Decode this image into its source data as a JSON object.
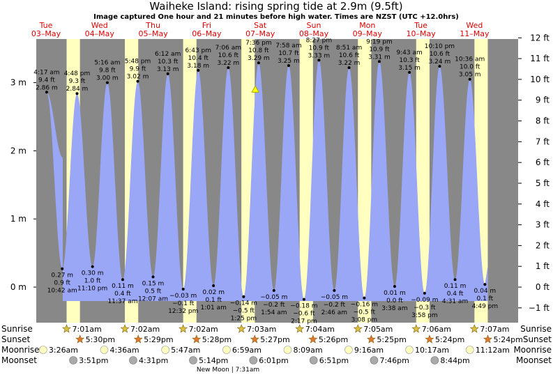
{
  "header": {
    "title": "Waiheke Island: rising  spring tide at 2.9m (9.5ft)",
    "subtitle": "Image captured One hour and 21 minutes before high water. Times are NZST (UTC +12.0hrs)"
  },
  "colors": {
    "night": "#888888",
    "day": "#ffffc0",
    "water": "#9aa6f6",
    "date_text": "#dd0000",
    "sun_star": "#d8c040",
    "sunset_star": "#e07830",
    "moonrise": "#ffffc0",
    "moonset": "#aaaaaa"
  },
  "days": [
    {
      "dow": "Tue",
      "date": "03–May"
    },
    {
      "dow": "Wed",
      "date": "04–May"
    },
    {
      "dow": "Thu",
      "date": "05–May"
    },
    {
      "dow": "Fri",
      "date": "06–May"
    },
    {
      "dow": "Sat",
      "date": "07–May"
    },
    {
      "dow": "Sun",
      "date": "08–May"
    },
    {
      "dow": "Mon",
      "date": "09–May"
    },
    {
      "dow": "Tue",
      "date": "10–May"
    },
    {
      "dow": "Wed",
      "date": "11–May"
    }
  ],
  "chart_data": {
    "type": "area",
    "x_start": "2022-05-03 12:00",
    "x_end": "2022-05-11 18:30",
    "ylim_m": [
      -0.42,
      3.85
    ],
    "ylim_ft": [
      -1.38,
      12.63
    ],
    "left_axis": {
      "ticks": [
        0,
        1,
        2,
        3
      ],
      "labels": [
        "0 m",
        "1 m",
        "2 m",
        "3 m"
      ]
    },
    "right_axis": {
      "ticks": [
        -1,
        0,
        1,
        2,
        3,
        4,
        5,
        6,
        7,
        8,
        9,
        10,
        11,
        12
      ],
      "labels": [
        "−1 ft",
        "0 ft",
        "1 ft",
        "2 ft",
        "3 ft",
        "4 ft",
        "5 ft",
        "6 ft",
        "7 ft",
        "8 ft",
        "9 ft",
        "10 ft",
        "11 ft",
        "12 ft"
      ]
    },
    "tides": [
      {
        "datetime": "2022-05-03 16:17",
        "type": "high",
        "label": [
          "4:17 am",
          "9.4 ft",
          "2.86 m"
        ],
        "m": 2.86
      },
      {
        "datetime": "2022-05-03 22:42",
        "type": "low",
        "label": [
          "0.27 m",
          "0.9 ft",
          "10:42 am"
        ],
        "m": 0.27
      },
      {
        "datetime": "2022-05-04 04:48",
        "type": "high",
        "label": [
          "4:48 pm",
          "9.3 ft",
          "2.84 m"
        ],
        "m": 2.84
      },
      {
        "datetime": "2022-05-04 11:10",
        "type": "low",
        "label": [
          "0.30 m",
          "1.0 ft",
          "11:10 pm"
        ],
        "m": 0.3
      },
      {
        "datetime": "2022-05-04 17:16",
        "type": "high",
        "label": [
          "5:16 am",
          "9.8 ft",
          "3.00 m"
        ],
        "m": 3.0
      },
      {
        "datetime": "2022-05-04 23:37",
        "type": "low",
        "label": [
          "0.11 m",
          "0.4 ft",
          "11:37 am"
        ],
        "m": 0.11
      },
      {
        "datetime": "2022-05-05 05:48",
        "type": "high",
        "label": [
          "5:48 pm",
          "9.9 ft",
          "3.02 m"
        ],
        "m": 3.02
      },
      {
        "datetime": "2022-05-05 12:07",
        "type": "low",
        "label": [
          "0.15 m",
          "0.5 ft",
          "12:07 am"
        ],
        "m": 0.15
      },
      {
        "datetime": "2022-05-05 18:12",
        "type": "high",
        "label": [
          "6:12 am",
          "10.3 ft",
          "3.13 m"
        ],
        "m": 3.13
      },
      {
        "datetime": "2022-05-06 00:32",
        "type": "low",
        "label": [
          "−0.03 m",
          "−0.1 ft",
          "12:32 pm"
        ],
        "m": -0.03
      },
      {
        "datetime": "2022-05-06 06:43",
        "type": "high",
        "label": [
          "6:43 pm",
          "10.4 ft",
          "3.18 m"
        ],
        "m": 3.18
      },
      {
        "datetime": "2022-05-06 13:01",
        "type": "low",
        "label": [
          "0.02 m",
          "0.1 ft",
          "1:01 am"
        ],
        "m": 0.02
      },
      {
        "datetime": "2022-05-06 19:06",
        "type": "high",
        "label": [
          "7:06 am",
          "10.6 ft",
          "3.22 m"
        ],
        "m": 3.22
      },
      {
        "datetime": "2022-05-07 01:25",
        "type": "low",
        "label": [
          "−0.14 m",
          "−0.5 ft",
          "1:25 pm"
        ],
        "m": -0.14
      },
      {
        "datetime": "2022-05-07 07:36",
        "type": "high",
        "label": [
          "7:36 pm",
          "10.8 ft",
          "3.29 m"
        ],
        "m": 3.29
      },
      {
        "datetime": "2022-05-07 13:54",
        "type": "low",
        "label": [
          "−0.05 m",
          "−0.2 ft",
          "1:54 am"
        ],
        "m": -0.05
      },
      {
        "datetime": "2022-05-07 19:58",
        "type": "high",
        "label": [
          "7:58 am",
          "10.7 ft",
          "3.25 m"
        ],
        "m": 3.25
      },
      {
        "datetime": "2022-05-08 02:17",
        "type": "low",
        "label": [
          "−0.18 m",
          "−0.6 ft",
          "2:17 pm"
        ],
        "m": -0.18
      },
      {
        "datetime": "2022-05-08 08:27",
        "type": "high",
        "label": [
          "8:27 pm",
          "10.9 ft",
          "3.33 m"
        ],
        "m": 3.33
      },
      {
        "datetime": "2022-05-08 14:46",
        "type": "low",
        "label": [
          "−0.05 m",
          "−0.2 ft",
          "2:46 am"
        ],
        "m": -0.05
      },
      {
        "datetime": "2022-05-08 20:51",
        "type": "high",
        "label": [
          "8:51 am",
          "10.6 ft",
          "3.22 m"
        ],
        "m": 3.22
      },
      {
        "datetime": "2022-05-09 03:08",
        "type": "low",
        "label": [
          "−0.16 m",
          "−0.5 ft",
          "3:08 pm"
        ],
        "m": -0.16
      },
      {
        "datetime": "2022-05-09 09:19",
        "type": "high",
        "label": [
          "9:19 pm",
          "10.9 ft",
          "3.31 m"
        ],
        "m": 3.31
      },
      {
        "datetime": "2022-05-09 15:38",
        "type": "low",
        "label": [
          "0.01 m",
          "0.0 ft",
          "3:38 am"
        ],
        "m": 0.01
      },
      {
        "datetime": "2022-05-09 21:43",
        "type": "high",
        "label": [
          "9:43 am",
          "10.3 ft",
          "3.15 m"
        ],
        "m": 3.15
      },
      {
        "datetime": "2022-05-10 03:58",
        "type": "low",
        "label": [
          "−0.09 m",
          "−0.3 ft",
          "3:58 pm"
        ],
        "m": -0.09
      },
      {
        "datetime": "2022-05-10 10:10",
        "type": "high",
        "label": [
          "10:10 pm",
          "10.6 ft",
          "3.24 m"
        ],
        "m": 3.24
      },
      {
        "datetime": "2022-05-10 16:31",
        "type": "low",
        "label": [
          "0.11 m",
          "0.4 ft",
          "4:31 am"
        ],
        "m": 0.11
      },
      {
        "datetime": "2022-05-10 22:36",
        "type": "high",
        "label": [
          "10:36 am",
          "10.0 ft",
          "3.05 m"
        ],
        "m": 3.05
      },
      {
        "datetime": "2022-05-11 04:49",
        "type": "low",
        "label": [
          "0.04 m",
          "0.1 ft",
          "4:49 pm"
        ],
        "m": 0.04
      }
    ],
    "current": {
      "datetime": "2022-05-07 06:15",
      "m": 2.9
    },
    "nights": [
      [
        "2022-05-03 12:00",
        "2022-05-04 00:30"
      ],
      [
        "2022-05-04 06:00",
        "2022-05-05 00:30"
      ],
      [
        "2022-05-05 06:00",
        "2022-05-06 00:30"
      ],
      [
        "2022-05-06 06:00",
        "2022-05-07 00:30"
      ],
      [
        "2022-05-07 06:00",
        "2022-05-08 00:30"
      ],
      [
        "2022-05-08 06:00",
        "2022-05-09 00:30"
      ],
      [
        "2022-05-09 06:00",
        "2022-05-10 00:30"
      ],
      [
        "2022-05-10 06:00",
        "2022-05-11 00:30"
      ],
      [
        "2022-05-11 06:00",
        "2022-05-11 18:30"
      ]
    ]
  },
  "astro": {
    "row_labels": {
      "sunrise": "Sunrise",
      "sunset": "Sunset",
      "moonrise": "Moonrise",
      "moonset": "Moonset"
    },
    "sunrise": [
      {
        "datetime": "2022-05-04 00:30",
        "text": "7:01am"
      },
      {
        "datetime": "2022-05-05 00:30",
        "text": "7:02am"
      },
      {
        "datetime": "2022-05-06 00:30",
        "text": "7:02am"
      },
      {
        "datetime": "2022-05-07 00:30",
        "text": "7:03am"
      },
      {
        "datetime": "2022-05-08 00:30",
        "text": "7:04am"
      },
      {
        "datetime": "2022-05-09 00:30",
        "text": "7:05am"
      },
      {
        "datetime": "2022-05-10 00:30",
        "text": "7:06am"
      },
      {
        "datetime": "2022-05-11 00:30",
        "text": "7:07am"
      }
    ],
    "sunset": [
      {
        "datetime": "2022-05-04 06:00",
        "text": "5:30pm"
      },
      {
        "datetime": "2022-05-05 06:00",
        "text": "5:29pm"
      },
      {
        "datetime": "2022-05-06 06:00",
        "text": "5:28pm"
      },
      {
        "datetime": "2022-05-07 06:00",
        "text": "5:27pm"
      },
      {
        "datetime": "2022-05-08 06:00",
        "text": "5:26pm"
      },
      {
        "datetime": "2022-05-09 06:00",
        "text": "5:25pm"
      },
      {
        "datetime": "2022-05-10 06:00",
        "text": "5:24pm"
      },
      {
        "datetime": "2022-05-11 06:00",
        "text": "5:24pm"
      }
    ],
    "moonrise": [
      {
        "datetime": "2022-05-03 14:50",
        "text": "3:26am"
      },
      {
        "datetime": "2022-05-04 16:00",
        "text": "4:36am"
      },
      {
        "datetime": "2022-05-05 17:11",
        "text": "5:47am"
      },
      {
        "datetime": "2022-05-06 18:23",
        "text": "6:59am"
      },
      {
        "datetime": "2022-05-07 19:33",
        "text": "8:09am"
      },
      {
        "datetime": "2022-05-08 20:40",
        "text": "9:16am"
      },
      {
        "datetime": "2022-05-09 21:41",
        "text": "10:17am"
      },
      {
        "datetime": "2022-05-10 22:36",
        "text": "11:12am"
      }
    ],
    "moonset": [
      {
        "datetime": "2022-05-04 03:15",
        "text": "3:51pm"
      },
      {
        "datetime": "2022-05-05 03:55",
        "text": "4:31pm"
      },
      {
        "datetime": "2022-05-06 04:38",
        "text": "5:14pm"
      },
      {
        "datetime": "2022-05-07 05:25",
        "text": "6:01pm"
      },
      {
        "datetime": "2022-05-08 06:15",
        "text": "6:51pm"
      },
      {
        "datetime": "2022-05-09 07:10",
        "text": "7:46pm"
      },
      {
        "datetime": "2022-05-10 08:08",
        "text": "8:44pm"
      }
    ],
    "moon_phase": {
      "datetime": "2022-05-06 19:00",
      "text": "New Moon | 7:31am"
    }
  }
}
